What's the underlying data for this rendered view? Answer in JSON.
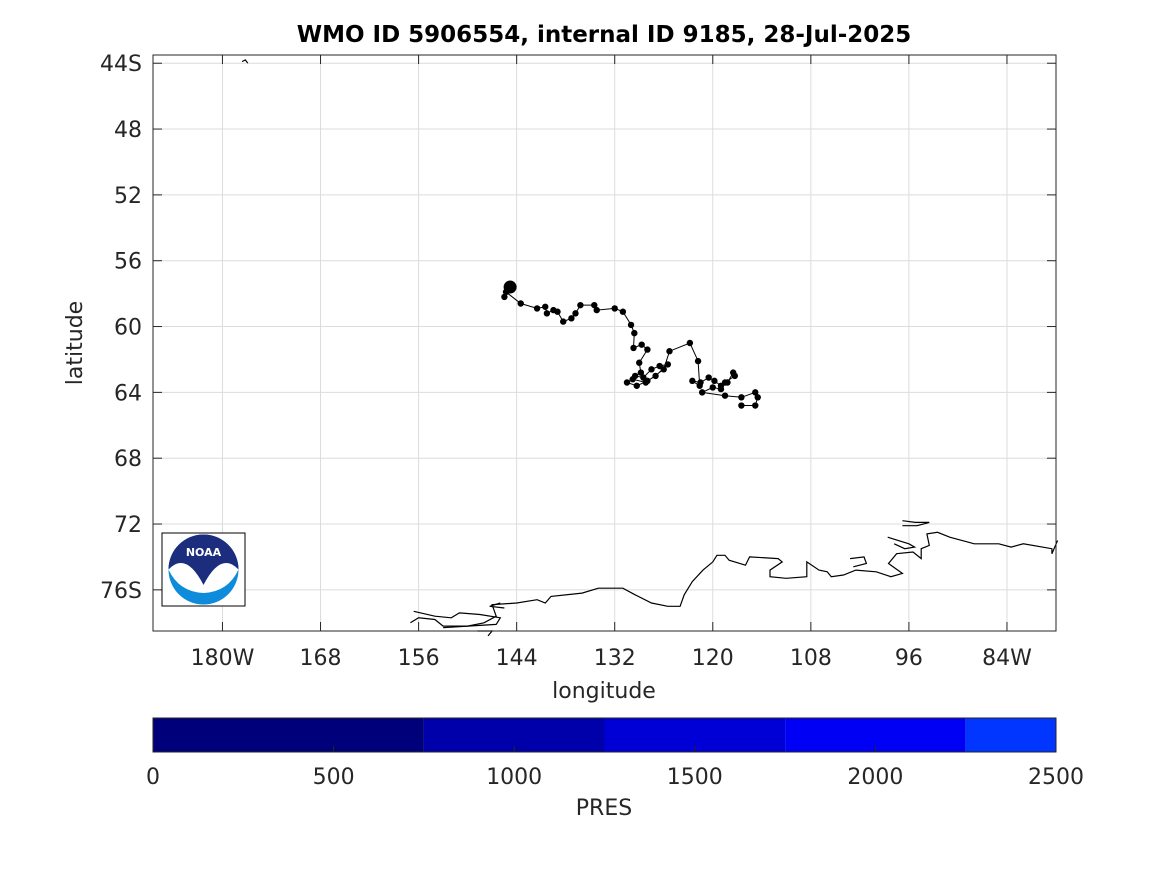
{
  "chart_data": {
    "type": "scatter",
    "title": "WMO ID 5906554, internal ID 9185, 28-Jul-2025",
    "xlabel": "longitude",
    "ylabel": "latitude",
    "xlim": [
      -188.5,
      -78
    ],
    "ylim": [
      -78.5,
      -43.5
    ],
    "grid": true,
    "x_ticks": [
      -180,
      -168,
      -156,
      -144,
      -132,
      -120,
      -108,
      -96,
      -84
    ],
    "x_tick_labels": [
      "180W",
      "168",
      "156",
      "144",
      "132",
      "120",
      "108",
      "96",
      "84W"
    ],
    "y_ticks": [
      -44,
      -48,
      -52,
      -56,
      -60,
      -64,
      -68,
      -72,
      -76
    ],
    "y_tick_labels": [
      "44S",
      "48",
      "52",
      "56",
      "60",
      "64",
      "68",
      "72",
      "76S"
    ],
    "float_track": {
      "start": {
        "lon": -144.8,
        "lat": -57.6
      },
      "points": [
        {
          "lon": -145.5,
          "lat": -58.2
        },
        {
          "lon": -145.3,
          "lat": -57.9
        },
        {
          "lon": -143.5,
          "lat": -58.6
        },
        {
          "lon": -141.5,
          "lat": -58.9
        },
        {
          "lon": -140.5,
          "lat": -58.8
        },
        {
          "lon": -140.3,
          "lat": -59.2
        },
        {
          "lon": -139.5,
          "lat": -59.0
        },
        {
          "lon": -139.0,
          "lat": -59.1
        },
        {
          "lon": -138.3,
          "lat": -59.7
        },
        {
          "lon": -137.3,
          "lat": -59.5
        },
        {
          "lon": -136.8,
          "lat": -59.2
        },
        {
          "lon": -136.2,
          "lat": -58.7
        },
        {
          "lon": -134.5,
          "lat": -58.7
        },
        {
          "lon": -134.2,
          "lat": -59.0
        },
        {
          "lon": -132.0,
          "lat": -58.9
        },
        {
          "lon": -131.0,
          "lat": -59.1
        },
        {
          "lon": -130.0,
          "lat": -59.9
        },
        {
          "lon": -129.6,
          "lat": -60.4
        },
        {
          "lon": -129.7,
          "lat": -61.3
        },
        {
          "lon": -128.7,
          "lat": -61.1
        },
        {
          "lon": -128.0,
          "lat": -61.4
        },
        {
          "lon": -129.0,
          "lat": -62.2
        },
        {
          "lon": -128.8,
          "lat": -62.8
        },
        {
          "lon": -129.5,
          "lat": -63.0
        },
        {
          "lon": -128.5,
          "lat": -63.1
        },
        {
          "lon": -127.5,
          "lat": -62.6
        },
        {
          "lon": -126.5,
          "lat": -62.4
        },
        {
          "lon": -125.5,
          "lat": -62.3
        },
        {
          "lon": -127.0,
          "lat": -63.0
        },
        {
          "lon": -128.0,
          "lat": -63.3
        },
        {
          "lon": -129.3,
          "lat": -63.6
        },
        {
          "lon": -130.5,
          "lat": -63.4
        },
        {
          "lon": -129.8,
          "lat": -63.2
        },
        {
          "lon": -128.2,
          "lat": -63.4
        },
        {
          "lon": -126.0,
          "lat": -62.6
        },
        {
          "lon": -125.3,
          "lat": -61.5
        },
        {
          "lon": -122.8,
          "lat": -61.0
        },
        {
          "lon": -121.8,
          "lat": -62.1
        },
        {
          "lon": -121.6,
          "lat": -63.6
        },
        {
          "lon": -122.5,
          "lat": -63.3
        },
        {
          "lon": -121.5,
          "lat": -63.4
        },
        {
          "lon": -120.5,
          "lat": -63.1
        },
        {
          "lon": -119.8,
          "lat": -63.3
        },
        {
          "lon": -119.0,
          "lat": -63.6
        },
        {
          "lon": -118.2,
          "lat": -63.4
        },
        {
          "lon": -117.5,
          "lat": -62.8
        },
        {
          "lon": -117.3,
          "lat": -63.0
        },
        {
          "lon": -118.5,
          "lat": -63.4
        },
        {
          "lon": -119.0,
          "lat": -63.8
        },
        {
          "lon": -120.0,
          "lat": -63.7
        },
        {
          "lon": -121.3,
          "lat": -64.0
        },
        {
          "lon": -118.5,
          "lat": -64.2
        },
        {
          "lon": -116.5,
          "lat": -64.3
        },
        {
          "lon": -114.8,
          "lat": -64.0
        },
        {
          "lon": -114.5,
          "lat": -64.3
        },
        {
          "lon": -114.8,
          "lat": -64.8
        },
        {
          "lon": -116.5,
          "lat": -64.8
        }
      ]
    },
    "coastline": [
      [
        [
          -157,
          -78.0
        ],
        [
          -156,
          -77.7
        ],
        [
          -154,
          -77.8
        ],
        [
          -153,
          -78.2
        ],
        [
          -150,
          -78.2
        ],
        [
          -148,
          -78.0
        ],
        [
          -146.5,
          -77.6
        ],
        [
          -147,
          -76.9
        ],
        [
          -144,
          -76.8
        ],
        [
          -141.5,
          -76.6
        ],
        [
          -140.5,
          -76.8
        ],
        [
          -139.8,
          -76.4
        ],
        [
          -136,
          -76.2
        ],
        [
          -134,
          -75.9
        ],
        [
          -131,
          -75.9
        ],
        [
          -129.5,
          -76.3
        ],
        [
          -127.5,
          -76.8
        ],
        [
          -125.5,
          -77.0
        ],
        [
          -124,
          -77.0
        ],
        [
          -123.5,
          -76.3
        ],
        [
          -122.5,
          -75.5
        ],
        [
          -121.2,
          -74.8
        ],
        [
          -120,
          -74.3
        ],
        [
          -119.5,
          -73.9
        ],
        [
          -118.5,
          -73.9
        ],
        [
          -118,
          -74.2
        ],
        [
          -116,
          -74.5
        ],
        [
          -115.5,
          -74.0
        ],
        [
          -112,
          -74.1
        ],
        [
          -111.5,
          -74.3
        ],
        [
          -113.0,
          -74.8
        ],
        [
          -113,
          -75.2
        ],
        [
          -111.0,
          -75.3
        ],
        [
          -108.5,
          -75.2
        ],
        [
          -108.5,
          -74.3
        ],
        [
          -107,
          -74.8
        ],
        [
          -106.0,
          -74.9
        ],
        [
          -105.5,
          -75.2
        ],
        [
          -104,
          -75.1
        ],
        [
          -102.5,
          -74.8
        ],
        [
          -100.0,
          -74.9
        ],
        [
          -98.2,
          -75.2
        ],
        [
          -96.8,
          -75.0
        ],
        [
          -98.5,
          -74.4
        ],
        [
          -97.5,
          -73.8
        ],
        [
          -95.5,
          -73.7
        ],
        [
          -94.5,
          -74.1
        ],
        [
          -94.5,
          -73.5
        ],
        [
          -93.5,
          -73.3
        ],
        [
          -93.8,
          -72.6
        ],
        [
          -92.5,
          -72.5
        ],
        [
          -91.0,
          -72.8
        ],
        [
          -88.0,
          -73.2
        ],
        [
          -85.0,
          -73.2
        ],
        [
          -83.5,
          -73.4
        ],
        [
          -82.0,
          -73.2
        ],
        [
          -78.5,
          -73.5
        ],
        [
          -78.5,
          -73.8
        ],
        [
          -77.8,
          -73.0
        ]
      ],
      [
        [
          -156.6,
          -77.3
        ],
        [
          -154,
          -77.6
        ],
        [
          -152,
          -77.7
        ],
        [
          -151,
          -77.4
        ],
        [
          -148.5,
          -77.5
        ],
        [
          -146.0,
          -77.7
        ],
        [
          -146.5,
          -78.1
        ],
        [
          -150,
          -78.2
        ],
        [
          -153,
          -78.3
        ]
      ],
      [
        [
          -96.8,
          -71.8
        ],
        [
          -95.2,
          -71.9
        ],
        [
          -93.5,
          -71.9
        ],
        [
          -95.0,
          -72.1
        ],
        [
          -96.8,
          -72.1
        ]
      ],
      [
        [
          -103.2,
          -74.1
        ],
        [
          -101.5,
          -74.0
        ],
        [
          -101.2,
          -74.4
        ],
        [
          -102.8,
          -74.6
        ]
      ],
      [
        [
          -98.6,
          -72.8
        ],
        [
          -96.0,
          -73.2
        ],
        [
          -95.3,
          -73.4
        ],
        [
          -96.5,
          -73.5
        ],
        [
          -97.8,
          -73.2
        ]
      ],
      [
        [
          -145.5,
          -77.1
        ],
        [
          -147.3,
          -77.0
        ],
        [
          -146.0,
          -76.8
        ]
      ],
      [
        [
          -148.8,
          -78.5
        ],
        [
          -147.0,
          -78.5
        ],
        [
          -147.5,
          -78.8
        ]
      ],
      [
        [
          -176.9,
          -44.0
        ],
        [
          -177.2,
          -43.8
        ],
        [
          -177.6,
          -43.9
        ]
      ]
    ],
    "colorbar": {
      "label": "PRES",
      "tick_values": [
        0,
        500,
        1000,
        1500,
        2000,
        2500
      ],
      "tick_labels": [
        "0",
        "500",
        "1000",
        "1500",
        "2000",
        "2500"
      ],
      "limits": [
        0,
        2500
      ],
      "segments": [
        {
          "from": 0,
          "to": 750,
          "color": "#00007a"
        },
        {
          "from": 750,
          "to": 1250,
          "color": "#0000aa"
        },
        {
          "from": 1250,
          "to": 1750,
          "color": "#0000d6"
        },
        {
          "from": 1750,
          "to": 2250,
          "color": "#0000f5"
        },
        {
          "from": 2250,
          "to": 2500,
          "color": "#0036ff"
        }
      ]
    }
  },
  "logo": {
    "text": "NOAA",
    "colors": {
      "navy": "#1c2d7e",
      "sky": "#0e8bdb"
    }
  }
}
